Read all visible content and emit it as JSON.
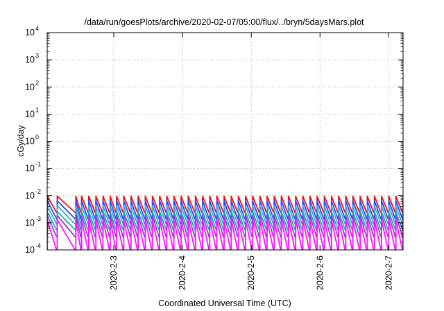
{
  "chart_data": {
    "type": "line",
    "title": "/data/run/goesPlots/archive/2020-02-07/05:00/flux/../bryn/5daysMars.plot",
    "xlabel": "Coordinated Universal Time (UTC)",
    "ylabel": "cGy/day",
    "y_scale": "log",
    "ylim": [
      0.0001,
      10000
    ],
    "xlim": [
      "2020-02-02T00:45",
      "2020-02-07T05:00"
    ],
    "y_ticks": [
      {
        "value": 0.0001,
        "base": "10",
        "exp": "-4"
      },
      {
        "value": 0.001,
        "base": "10",
        "exp": "-3"
      },
      {
        "value": 0.01,
        "base": "10",
        "exp": "-2"
      },
      {
        "value": 0.1,
        "base": "10",
        "exp": "-1"
      },
      {
        "value": 1,
        "base": "10",
        "exp": "0"
      },
      {
        "value": 10,
        "base": "10",
        "exp": "1"
      },
      {
        "value": 100,
        "base": "10",
        "exp": "2"
      },
      {
        "value": 1000,
        "base": "10",
        "exp": "3"
      },
      {
        "value": 10000,
        "base": "10",
        "exp": "4"
      }
    ],
    "x_ticks": [
      {
        "value": "2020-02-03T00:00",
        "label": "2020-2-3"
      },
      {
        "value": "2020-02-04T00:00",
        "label": "2020-2-4"
      },
      {
        "value": "2020-02-05T00:00",
        "label": "2020-2-5"
      },
      {
        "value": "2020-02-06T00:00",
        "label": "2020-2-6"
      },
      {
        "value": "2020-02-07T00:00",
        "label": "2020-2-7"
      }
    ],
    "grid": true,
    "legend": "none",
    "series": [
      {
        "color": "#e8101a",
        "peak": 0.0095,
        "trough": 0.0024,
        "peaks": [
          "2020-02-02T00:45",
          "2020-02-02T04:15",
          "2020-02-02T10:45",
          "2020-02-02T12:45",
          "2020-02-02T15:15",
          "2020-02-02T17:45",
          "2020-02-02T20:15",
          "2020-02-02T22:45",
          "2020-02-03T01:00",
          "2020-02-03T03:30",
          "2020-02-03T06:00",
          "2020-02-03T08:30",
          "2020-02-03T11:00",
          "2020-02-03T13:30",
          "2020-02-03T16:00",
          "2020-02-03T18:30",
          "2020-02-03T21:00",
          "2020-02-03T23:30",
          "2020-02-04T02:00",
          "2020-02-04T04:30",
          "2020-02-04T07:00",
          "2020-02-04T09:30",
          "2020-02-04T12:00",
          "2020-02-04T14:30",
          "2020-02-04T17:00",
          "2020-02-04T19:30",
          "2020-02-04T22:00",
          "2020-02-05T00:30",
          "2020-02-05T03:00",
          "2020-02-05T05:30",
          "2020-02-05T08:00",
          "2020-02-05T10:30",
          "2020-02-05T13:00",
          "2020-02-05T15:30",
          "2020-02-05T18:00",
          "2020-02-05T20:30",
          "2020-02-05T23:00",
          "2020-02-06T01:30",
          "2020-02-06T04:00",
          "2020-02-06T06:30",
          "2020-02-06T09:00",
          "2020-02-06T11:30",
          "2020-02-06T14:00",
          "2020-02-06T16:30",
          "2020-02-06T19:00",
          "2020-02-06T21:30",
          "2020-02-07T00:00",
          "2020-02-07T02:30",
          "2020-02-07T05:00"
        ]
      },
      {
        "color": "#1f4fff",
        "peak": 0.0065,
        "trough": 0.0014
      },
      {
        "color": "#4a9fe0",
        "peak": 0.0042,
        "trough": 0.0009
      },
      {
        "color": "#18b0a0",
        "peak": 0.0026,
        "trough": 0.00055
      },
      {
        "color": "#8a40d8",
        "peak": 0.0019,
        "trough": 0.0003
      },
      {
        "color": "#ff10ff",
        "peak": 0.0013,
        "trough": 9e-05
      }
    ]
  }
}
